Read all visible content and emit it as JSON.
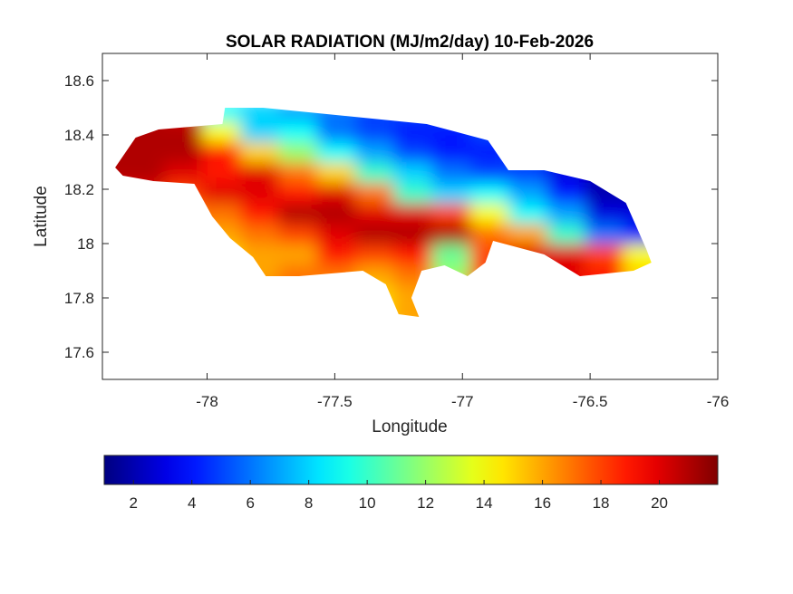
{
  "chart_data": {
    "type": "heatmap",
    "title": "SOLAR RADIATION (MJ/m2/day) 10-Feb-2026",
    "xlabel": "Longitude",
    "ylabel": "Latitude",
    "xlim": [
      -78.41,
      -76
    ],
    "ylim": [
      17.5,
      18.7
    ],
    "xticks": [
      -78,
      -77.5,
      -77,
      -76.5,
      -76
    ],
    "xtick_labels": [
      "-78",
      "-77.5",
      "-77",
      "-76.5",
      "-76"
    ],
    "yticks": [
      17.6,
      17.8,
      18,
      18.2,
      18.4,
      18.6
    ],
    "ytick_labels": [
      "17.6",
      "17.8",
      "18",
      "18.2",
      "18.4",
      "18.6"
    ],
    "colormap": "jet",
    "clim": [
      1,
      22
    ],
    "colorbar": {
      "location": "bottom",
      "ticks": [
        2,
        4,
        6,
        8,
        10,
        12,
        14,
        16,
        18,
        20
      ],
      "tick_labels": [
        "2",
        "4",
        "6",
        "8",
        "10",
        "12",
        "14",
        "16",
        "18",
        "20"
      ]
    },
    "grid": false,
    "lon_centers": [
      -78.375,
      -78.225,
      -78.075,
      -77.925,
      -77.775,
      -77.625,
      -77.475,
      -77.325,
      -77.175,
      -77.025,
      -76.875,
      -76.725,
      -76.575,
      -76.425,
      -76.275
    ],
    "lat_centers": [
      18.475,
      18.4,
      18.325,
      18.25,
      18.175,
      18.1,
      18.025,
      17.95,
      17.875,
      17.8,
      17.725
    ],
    "values": [
      [
        21,
        21,
        20,
        9,
        8,
        7,
        6,
        5,
        5,
        5,
        5,
        4,
        4,
        3,
        3
      ],
      [
        21,
        21,
        21,
        14,
        8,
        9,
        6,
        5,
        4,
        4,
        5,
        4,
        4,
        3,
        3
      ],
      [
        21,
        21,
        21,
        19,
        15,
        12,
        9,
        7,
        5,
        4,
        4,
        5,
        4,
        3,
        3
      ],
      [
        21,
        21,
        20,
        19,
        20,
        17,
        15,
        10,
        8,
        6,
        5,
        5,
        3,
        2,
        2
      ],
      [
        20,
        20,
        18,
        20,
        20,
        19,
        20,
        17,
        10,
        8,
        9,
        7,
        4,
        2,
        2
      ],
      [
        19,
        18,
        17,
        17,
        19,
        21,
        21,
        20,
        20,
        18,
        14,
        9,
        7,
        3,
        3
      ],
      [
        18,
        17,
        16,
        16,
        17,
        18,
        20,
        21,
        21,
        21,
        17,
        16,
        10,
        6,
        4
      ],
      [
        17,
        17,
        16,
        15,
        16,
        16,
        19,
        18,
        19,
        11,
        18,
        20,
        20,
        18,
        14
      ],
      [
        17,
        17,
        17,
        16,
        16,
        17,
        17,
        16,
        17,
        12,
        18,
        20,
        20,
        19,
        15
      ],
      [
        17,
        17,
        17,
        17,
        17,
        17,
        16,
        15,
        16,
        17,
        18,
        19,
        19,
        19,
        15
      ],
      [
        17,
        17,
        17,
        17,
        17,
        17,
        16,
        15,
        16,
        17,
        18,
        19,
        19,
        19,
        15
      ]
    ],
    "outline": [
      [
        -78.36,
        18.28
      ],
      [
        -78.28,
        18.39
      ],
      [
        -78.19,
        18.42
      ],
      [
        -77.94,
        18.44
      ],
      [
        -77.93,
        18.5
      ],
      [
        -77.78,
        18.5
      ],
      [
        -77.46,
        18.47
      ],
      [
        -77.14,
        18.44
      ],
      [
        -76.9,
        18.38
      ],
      [
        -76.82,
        18.27
      ],
      [
        -76.68,
        18.27
      ],
      [
        -76.5,
        18.23
      ],
      [
        -76.36,
        18.15
      ],
      [
        -76.28,
        17.98
      ],
      [
        -76.26,
        17.93
      ],
      [
        -76.33,
        17.9
      ],
      [
        -76.54,
        17.88
      ],
      [
        -76.68,
        17.96
      ],
      [
        -76.88,
        18.01
      ],
      [
        -76.91,
        17.93
      ],
      [
        -76.98,
        17.88
      ],
      [
        -77.07,
        17.92
      ],
      [
        -77.16,
        17.9
      ],
      [
        -77.2,
        17.8
      ],
      [
        -77.17,
        17.73
      ],
      [
        -77.25,
        17.74
      ],
      [
        -77.3,
        17.85
      ],
      [
        -77.39,
        17.9
      ],
      [
        -77.64,
        17.88
      ],
      [
        -77.77,
        17.88
      ],
      [
        -77.82,
        17.95
      ],
      [
        -77.91,
        18.02
      ],
      [
        -77.98,
        18.1
      ],
      [
        -78.05,
        18.22
      ],
      [
        -78.21,
        18.23
      ],
      [
        -78.33,
        18.25
      ]
    ]
  }
}
